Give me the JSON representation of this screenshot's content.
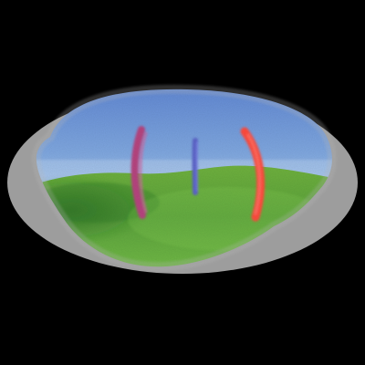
{
  "scene": {
    "kind": "panoramic-ellipse",
    "background_color": "#000000",
    "frame_color": "#9d9d9d",
    "sky_top_color": "#5f86d2",
    "sky_bottom_color": "#a8c4ea",
    "grass_color": "#69bb3e",
    "grass_dark_color": "#2f7a27",
    "pole_colors": {
      "left": "#b6447f",
      "center": "#5b63c8",
      "right": "#ff4b3e"
    }
  }
}
